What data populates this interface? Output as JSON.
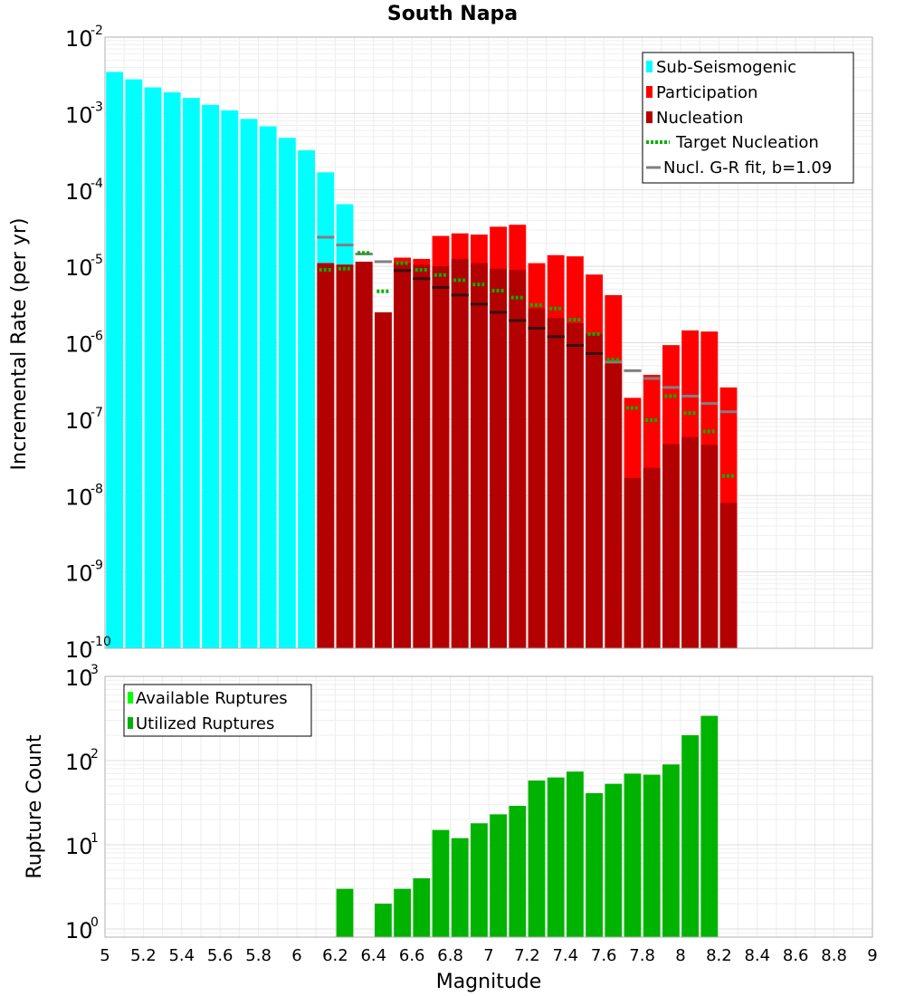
{
  "chart_data": [
    {
      "type": "bar",
      "title": "South Napa",
      "xlabel": "",
      "ylabel": "Incremental Rate (per yr)",
      "yscale": "log",
      "xlim": [
        5,
        9
      ],
      "ylim": [
        1e-10,
        0.01
      ],
      "ytick_exponents": [
        "-10",
        "-9",
        "-8",
        "-7",
        "-6",
        "-5",
        "-4",
        "-3",
        "-2"
      ],
      "bin_width": 0.1,
      "legend_position": "top-right",
      "legend": [
        {
          "label": "Sub-Seismogenic",
          "color": "#00ffff",
          "style": "box"
        },
        {
          "label": "Participation",
          "color": "#ff0000",
          "style": "box"
        },
        {
          "label": "Nucleation",
          "color": "#b30000",
          "style": "box"
        },
        {
          "label": "Target Nucleation",
          "color": "#00b300",
          "style": "dotted"
        },
        {
          "label": "Nucl. G-R fit, b=1.09",
          "color": "#808080",
          "style": "line"
        }
      ],
      "series": [
        {
          "name": "Sub-Seismogenic",
          "x": [
            5.05,
            5.15,
            5.25,
            5.35,
            5.45,
            5.55,
            5.65,
            5.75,
            5.85,
            5.95,
            6.05,
            6.15,
            6.25
          ],
          "values": [
            0.0035,
            0.0028,
            0.0022,
            0.0019,
            0.0016,
            0.0013,
            0.0011,
            0.00085,
            0.00068,
            0.00048,
            0.00033,
            0.00017,
            6.5e-05
          ]
        },
        {
          "name": "Participation",
          "x": [
            6.15,
            6.25,
            6.35,
            6.45,
            6.55,
            6.65,
            6.75,
            6.85,
            6.95,
            7.05,
            7.15,
            7.25,
            7.35,
            7.45,
            7.55,
            7.65,
            7.75,
            7.85,
            7.95,
            8.05,
            8.15,
            8.25
          ],
          "values": [
            1.1e-05,
            1.05e-05,
            1.15e-05,
            2.5e-06,
            1.3e-05,
            1.25e-05,
            2.5e-05,
            2.7e-05,
            2.6e-05,
            3.3e-05,
            3.5e-05,
            1.1e-05,
            1.4e-05,
            1.35e-05,
            7.8e-06,
            4.2e-06,
            1.9e-07,
            3.8e-07,
            9.3e-07,
            1.45e-06,
            1.4e-06,
            2.6e-07
          ]
        },
        {
          "name": "Nucleation",
          "x": [
            6.15,
            6.25,
            6.35,
            6.45,
            6.55,
            6.65,
            6.75,
            6.85,
            6.95,
            7.05,
            7.15,
            7.25,
            7.35,
            7.45,
            7.55,
            7.65,
            7.75,
            7.85,
            7.95,
            8.05,
            8.15,
            8.25
          ],
          "values": [
            1.1e-05,
            1.05e-05,
            1.15e-05,
            2.5e-06,
            1.1e-05,
            1.05e-05,
            1e-05,
            1.25e-05,
            1.1e-05,
            9.3e-06,
            9e-06,
            2.8e-06,
            2.1e-06,
            1.8e-06,
            1.3e-06,
            5.3e-07,
            1.7e-08,
            2.3e-08,
            4.7e-08,
            5.8e-08,
            4.6e-08,
            8e-09
          ]
        },
        {
          "name": "Target Nucleation",
          "x": [
            6.15,
            6.25,
            6.35,
            6.45,
            6.55,
            6.65,
            6.75,
            6.85,
            6.95,
            7.05,
            7.15,
            7.25,
            7.35,
            7.45,
            7.55,
            7.65,
            7.75,
            7.85,
            7.95,
            8.05,
            8.15,
            8.25
          ],
          "values": [
            9e-06,
            9.3e-06,
            1.5e-05,
            4.7e-06,
            1.1e-05,
            9e-06,
            7.7e-06,
            6.6e-06,
            5.8e-06,
            4.8e-06,
            3.9e-06,
            3.1e-06,
            2.8e-06,
            2e-06,
            1.3e-06,
            6e-07,
            1.4e-07,
            9.7e-08,
            2e-07,
            1.2e-07,
            6.9e-08,
            1.8e-08
          ]
        },
        {
          "name": "Nucl. G-R fit, b=1.09",
          "x": [
            6.15,
            6.25,
            6.35,
            6.45,
            6.55,
            6.65,
            6.75,
            6.85,
            6.95,
            7.05,
            7.15,
            7.25,
            7.35,
            7.45,
            7.55,
            7.65,
            7.75,
            7.85,
            7.95,
            8.05,
            8.15,
            8.25
          ],
          "values": [
            2.4e-05,
            1.9e-05,
            1.45e-05,
            1.15e-05,
            8.8e-06,
            6.9e-06,
            5.3e-06,
            4.2e-06,
            3.2e-06,
            2.5e-06,
            1.95e-06,
            1.55e-06,
            1.2e-06,
            9.2e-07,
            7.2e-07,
            5.6e-07,
            4.3e-07,
            3.4e-07,
            2.6e-07,
            2e-07,
            1.6e-07,
            1.25e-07
          ]
        }
      ]
    },
    {
      "type": "bar",
      "title": "",
      "xlabel": "Magnitude",
      "ylabel": "Rupture Count",
      "yscale": "log",
      "xlim": [
        5,
        9
      ],
      "ylim": [
        0.8,
        1000
      ],
      "ytick_exponents": [
        "0",
        "1",
        "2",
        "3"
      ],
      "xticks": [
        "5",
        "5.2",
        "5.4",
        "5.6",
        "5.8",
        "6",
        "6.2",
        "6.4",
        "6.6",
        "6.8",
        "7",
        "7.2",
        "7.4",
        "7.6",
        "7.8",
        "8",
        "8.2",
        "8.4",
        "8.6",
        "8.8",
        "9"
      ],
      "bin_width": 0.1,
      "legend_position": "top-left",
      "legend": [
        {
          "label": "Available Ruptures",
          "color": "#00ff00",
          "style": "box"
        },
        {
          "label": "Utilized Ruptures",
          "color": "#00b300",
          "style": "box"
        }
      ],
      "series": [
        {
          "name": "Utilized Ruptures",
          "x": [
            6.25,
            6.45,
            6.55,
            6.65,
            6.75,
            6.85,
            6.95,
            7.05,
            7.15,
            7.25,
            7.35,
            7.45,
            7.55,
            7.65,
            7.75,
            7.85,
            7.95,
            8.05,
            8.15
          ],
          "values": [
            3,
            2,
            3,
            4,
            15,
            12,
            18,
            23,
            29,
            58,
            63,
            74,
            41,
            53,
            70,
            68,
            90,
            200,
            340
          ]
        }
      ]
    }
  ]
}
